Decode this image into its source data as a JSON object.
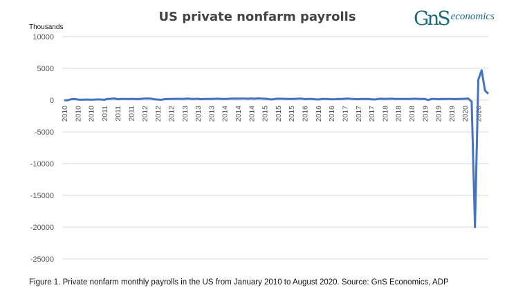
{
  "logo": {
    "mark": "GnS",
    "word": "economics",
    "color": "#1a6b7c"
  },
  "caption": "Figure 1. Private nonfarm monthly payrolls in the US from January 2010 to August 2020. Source: GnS Economics, ADP",
  "chart_data": {
    "type": "line",
    "title": "US private nonfarm payrolls",
    "ylabel": "Thousands",
    "xlabel": "",
    "ylim": [
      -25000,
      10000
    ],
    "yticks": [
      10000,
      5000,
      0,
      -5000,
      -10000,
      -15000,
      -20000,
      -25000
    ],
    "grid": true,
    "x_start": "2010-01",
    "x_end": "2020-08",
    "xtick_every_months": 4,
    "xtick_labels": [
      "2010",
      "2010",
      "2010",
      "2011",
      "2011",
      "2011",
      "2012",
      "2012",
      "2012",
      "2013",
      "2013",
      "2013",
      "2014",
      "2014",
      "2014",
      "2015",
      "2015",
      "2015",
      "2016",
      "2016",
      "2016",
      "2017",
      "2017",
      "2017",
      "2018",
      "2018",
      "2018",
      "2019",
      "2019",
      "2019",
      "2020",
      "2020"
    ],
    "series": [
      {
        "name": "Private nonfarm payrolls",
        "color": "#4472c4",
        "values": [
          -30,
          -20,
          130,
          200,
          100,
          50,
          80,
          100,
          60,
          80,
          120,
          100,
          50,
          200,
          220,
          260,
          150,
          180,
          200,
          170,
          190,
          180,
          160,
          210,
          250,
          260,
          230,
          130,
          100,
          50,
          150,
          170,
          180,
          200,
          210,
          180,
          210,
          240,
          180,
          200,
          220,
          150,
          190,
          200,
          190,
          210,
          230,
          200,
          180,
          210,
          230,
          250,
          230,
          250,
          240,
          220,
          260,
          220,
          270,
          250,
          220,
          180,
          100,
          180,
          230,
          220,
          210,
          180,
          190,
          200,
          230,
          240,
          160,
          200,
          180,
          150,
          100,
          180,
          190,
          170,
          140,
          150,
          190,
          170,
          220,
          240,
          200,
          170,
          150,
          180,
          170,
          180,
          140,
          100,
          200,
          220,
          200,
          210,
          230,
          180,
          200,
          180,
          200,
          190,
          200,
          230,
          200,
          180,
          190,
          20,
          180,
          200,
          150,
          200,
          170,
          200,
          200,
          160,
          180,
          200,
          220,
          250,
          -250,
          -20000,
          3200,
          4700,
          1500,
          1000
        ]
      }
    ]
  }
}
